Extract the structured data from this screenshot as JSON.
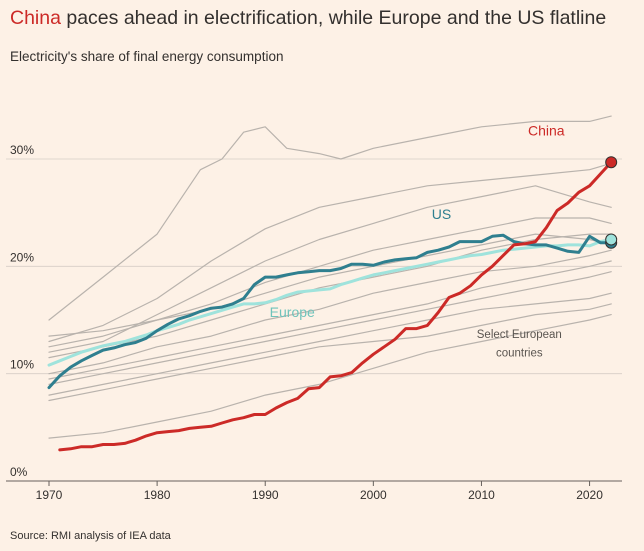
{
  "title": {
    "highlight": "China",
    "rest": " paces ahead in electrification, while Europe and the US flatline"
  },
  "subtitle": "Electricity's share of final energy consumption",
  "source": "Source: RMI analysis of IEA data",
  "colors": {
    "background": "#fdf1e6",
    "china": "#cc2a27",
    "us": "#2f7f8f",
    "europe": "#9fe3dc",
    "countries": "#b9b3ad",
    "grid": "#d6cec6"
  },
  "chart_data": {
    "type": "line",
    "title": "China paces ahead in electrification, while Europe and the US flatline",
    "subtitle": "Electricity's share of final energy consumption",
    "xlabel": "",
    "ylabel": "",
    "xlim": [
      1970,
      2023
    ],
    "ylim": [
      0,
      35
    ],
    "xticks": [
      1970,
      1980,
      1990,
      2000,
      2010,
      2020
    ],
    "xtick_labels": [
      "1970",
      "1980",
      "1990",
      "2000",
      "2010",
      "2020"
    ],
    "yticks": [
      0,
      10,
      20,
      30
    ],
    "ytick_labels": [
      "0%",
      "10%",
      "20%",
      "30%"
    ],
    "grid": "horizontal",
    "series": [
      {
        "name": "China",
        "role": "highlight",
        "endpoint_marker": true,
        "x": [
          1971,
          1972,
          1973,
          1974,
          1975,
          1976,
          1977,
          1978,
          1979,
          1980,
          1981,
          1982,
          1983,
          1984,
          1985,
          1986,
          1987,
          1988,
          1989,
          1990,
          1991,
          1992,
          1993,
          1994,
          1995,
          1996,
          1997,
          1998,
          1999,
          2000,
          2001,
          2002,
          2003,
          2004,
          2005,
          2006,
          2007,
          2008,
          2009,
          2010,
          2011,
          2012,
          2013,
          2014,
          2015,
          2016,
          2017,
          2018,
          2019,
          2020,
          2021,
          2022
        ],
        "y": [
          2.9,
          3.0,
          3.2,
          3.2,
          3.4,
          3.4,
          3.5,
          3.8,
          4.2,
          4.5,
          4.6,
          4.7,
          4.9,
          5.0,
          5.1,
          5.4,
          5.7,
          5.9,
          6.2,
          6.2,
          6.8,
          7.3,
          7.7,
          8.6,
          8.7,
          9.7,
          9.8,
          10.1,
          11.0,
          11.8,
          12.5,
          13.2,
          14.2,
          14.2,
          14.5,
          15.7,
          17.1,
          17.5,
          18.2,
          19.2,
          20.0,
          21.0,
          22.0,
          22.1,
          22.3,
          23.6,
          25.2,
          25.9,
          26.9,
          27.5,
          28.6,
          29.7
        ]
      },
      {
        "name": "US",
        "role": "highlight",
        "endpoint_marker": true,
        "x": [
          1970,
          1971,
          1972,
          1973,
          1974,
          1975,
          1976,
          1977,
          1978,
          1979,
          1980,
          1981,
          1982,
          1983,
          1984,
          1985,
          1986,
          1987,
          1988,
          1989,
          1990,
          1991,
          1992,
          1993,
          1994,
          1995,
          1996,
          1997,
          1998,
          1999,
          2000,
          2001,
          2002,
          2003,
          2004,
          2005,
          2006,
          2007,
          2008,
          2009,
          2010,
          2011,
          2012,
          2013,
          2014,
          2015,
          2016,
          2017,
          2018,
          2019,
          2020,
          2021,
          2022
        ],
        "y": [
          8.7,
          9.8,
          10.6,
          11.2,
          11.7,
          12.2,
          12.4,
          12.7,
          12.9,
          13.3,
          14.0,
          14.6,
          15.1,
          15.4,
          15.8,
          16.1,
          16.2,
          16.5,
          17.0,
          18.3,
          19.0,
          19.0,
          19.2,
          19.4,
          19.5,
          19.6,
          19.6,
          19.8,
          20.2,
          20.2,
          20.1,
          20.4,
          20.6,
          20.7,
          20.8,
          21.3,
          21.5,
          21.8,
          22.3,
          22.3,
          22.3,
          22.8,
          22.9,
          22.3,
          22.1,
          22.0,
          22.0,
          21.7,
          21.4,
          21.3,
          22.8,
          22.2,
          22.2
        ]
      },
      {
        "name": "Europe",
        "role": "highlight",
        "endpoint_marker": true,
        "x": [
          1970,
          1971,
          1972,
          1973,
          1974,
          1975,
          1976,
          1977,
          1978,
          1979,
          1980,
          1981,
          1982,
          1983,
          1984,
          1985,
          1986,
          1987,
          1988,
          1989,
          1990,
          1991,
          1992,
          1993,
          1994,
          1995,
          1996,
          1997,
          1998,
          1999,
          2000,
          2001,
          2002,
          2003,
          2004,
          2005,
          2006,
          2007,
          2008,
          2009,
          2010,
          2011,
          2012,
          2013,
          2014,
          2015,
          2016,
          2017,
          2018,
          2019,
          2020,
          2021,
          2022
        ],
        "y": [
          10.8,
          11.2,
          11.6,
          12.0,
          12.3,
          12.6,
          12.8,
          13.0,
          13.3,
          13.6,
          14.0,
          14.3,
          14.6,
          15.0,
          15.3,
          15.6,
          15.9,
          16.2,
          16.5,
          16.5,
          16.6,
          16.9,
          17.3,
          17.6,
          17.7,
          17.8,
          17.9,
          18.3,
          18.6,
          18.9,
          19.2,
          19.4,
          19.6,
          19.8,
          20.0,
          20.2,
          20.4,
          20.6,
          20.8,
          21.0,
          21.1,
          21.3,
          21.5,
          21.6,
          21.7,
          21.8,
          21.9,
          21.9,
          22.0,
          22.0,
          21.9,
          22.3,
          22.5
        ]
      },
      {
        "name": "",
        "role": "context",
        "x": [
          1970,
          1975,
          1980,
          1984,
          1986,
          1988,
          1990,
          1992,
          1995,
          1997,
          2000,
          2005,
          2010,
          2015,
          2020,
          2022
        ],
        "y": [
          15.0,
          19.0,
          23.0,
          29.0,
          30.0,
          32.5,
          33.0,
          31.0,
          30.5,
          30.0,
          31.0,
          32.0,
          33.0,
          33.5,
          33.5,
          34.0
        ]
      },
      {
        "name": "",
        "role": "context",
        "x": [
          1970,
          1975,
          1980,
          1985,
          1990,
          1995,
          2000,
          2005,
          2010,
          2015,
          2020,
          2022
        ],
        "y": [
          13.0,
          14.5,
          17.0,
          20.5,
          23.5,
          25.5,
          26.5,
          27.5,
          28.0,
          28.5,
          29.0,
          29.6
        ]
      },
      {
        "name": "",
        "role": "context",
        "x": [
          1970,
          1975,
          1980,
          1985,
          1990,
          1995,
          2000,
          2005,
          2010,
          2015,
          2020,
          2022
        ],
        "y": [
          12.0,
          13.0,
          15.5,
          18.0,
          20.5,
          22.5,
          24.0,
          25.5,
          26.5,
          27.5,
          26.0,
          25.5
        ]
      },
      {
        "name": "",
        "role": "context",
        "x": [
          1970,
          1975,
          1980,
          1985,
          1990,
          1995,
          2000,
          2005,
          2010,
          2015,
          2020,
          2022
        ],
        "y": [
          12.5,
          13.5,
          15.0,
          16.5,
          18.5,
          20.0,
          21.5,
          22.5,
          23.5,
          24.5,
          24.5,
          24.0
        ]
      },
      {
        "name": "",
        "role": "context",
        "x": [
          1970,
          1975,
          1980,
          1985,
          1990,
          1995,
          2000,
          2005,
          2010,
          2015,
          2020,
          2022
        ],
        "y": [
          11.5,
          12.5,
          13.5,
          15.0,
          16.5,
          18.0,
          19.0,
          20.0,
          21.5,
          22.5,
          23.0,
          23.0
        ]
      },
      {
        "name": "",
        "role": "context",
        "x": [
          1970,
          1975,
          1980,
          1985,
          1990,
          1995,
          2000,
          2005,
          2010,
          2015,
          2020,
          2022
        ],
        "y": [
          10.0,
          11.0,
          12.5,
          13.5,
          15.0,
          16.0,
          17.5,
          18.5,
          19.5,
          20.0,
          21.0,
          21.5
        ]
      },
      {
        "name": "",
        "role": "context",
        "x": [
          1970,
          1975,
          1980,
          1985,
          1990,
          1995,
          2000,
          2005,
          2010,
          2015,
          2020,
          2022
        ],
        "y": [
          9.5,
          10.5,
          11.5,
          12.5,
          13.5,
          14.5,
          15.5,
          16.5,
          18.0,
          19.0,
          20.0,
          20.5
        ]
      },
      {
        "name": "",
        "role": "context",
        "x": [
          1970,
          1975,
          1980,
          1985,
          1990,
          1995,
          2000,
          2005,
          2010,
          2015,
          2020,
          2022
        ],
        "y": [
          9.0,
          10.0,
          11.0,
          12.0,
          13.0,
          14.0,
          15.0,
          16.0,
          17.0,
          18.0,
          19.0,
          19.5
        ]
      },
      {
        "name": "",
        "role": "context",
        "x": [
          1970,
          1975,
          1980,
          1985,
          1990,
          1995,
          2000,
          2005,
          2010,
          2015,
          2020,
          2022
        ],
        "y": [
          8.0,
          9.0,
          10.0,
          11.0,
          12.0,
          13.0,
          14.0,
          15.0,
          16.0,
          16.5,
          17.0,
          17.5
        ]
      },
      {
        "name": "",
        "role": "context",
        "x": [
          1970,
          1975,
          1980,
          1985,
          1990,
          1995,
          2000,
          2005,
          2010,
          2015,
          2020,
          2022
        ],
        "y": [
          7.5,
          8.5,
          9.5,
          10.5,
          11.5,
          12.5,
          13.0,
          13.5,
          14.5,
          15.5,
          16.0,
          16.5
        ]
      },
      {
        "name": "",
        "role": "context",
        "x": [
          1970,
          1975,
          1980,
          1985,
          1990,
          1995,
          2000,
          2005,
          2010,
          2015,
          2020,
          2022
        ],
        "y": [
          4.0,
          4.5,
          5.5,
          6.5,
          8.0,
          9.0,
          10.5,
          12.0,
          13.0,
          14.0,
          15.0,
          15.5
        ]
      },
      {
        "name": "",
        "role": "context",
        "x": [
          1970,
          1975,
          1980,
          1985,
          1990,
          1995,
          2000,
          2005,
          2010,
          2015,
          2020,
          2022
        ],
        "y": [
          13.5,
          14.0,
          15.0,
          16.0,
          17.5,
          19.0,
          20.0,
          21.0,
          22.0,
          23.0,
          22.5,
          22.0
        ]
      }
    ],
    "annotations": [
      {
        "text": "China",
        "x": 2016,
        "y": 32.2,
        "series": "China"
      },
      {
        "text": "US",
        "x": 2006.3,
        "y": 24.4,
        "series": "US"
      },
      {
        "text": "Europe",
        "x": 1992.5,
        "y": 15.3,
        "series": "Europe"
      },
      {
        "text": "Select European",
        "x": 2013.5,
        "y": 13.3,
        "series": "context"
      },
      {
        "text": "countries",
        "x": 2013.5,
        "y": 11.6,
        "series": "context"
      }
    ]
  }
}
